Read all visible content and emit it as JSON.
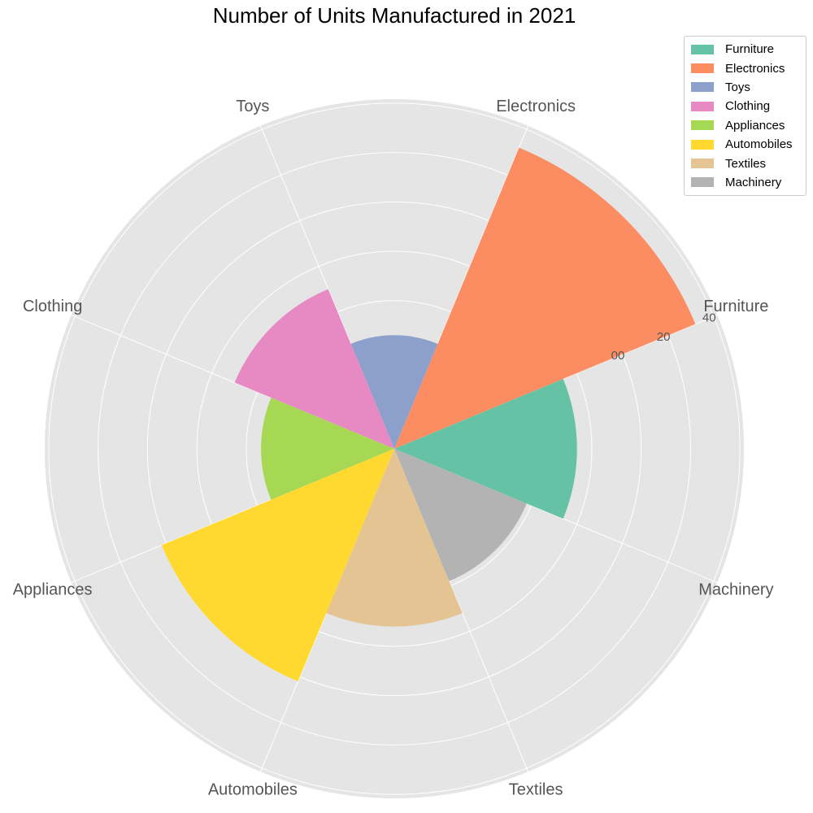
{
  "chart_data": {
    "type": "polar-bar",
    "title": "Number of Units Manufactured in 2021",
    "categories": [
      "Furniture",
      "Electronics",
      "Toys",
      "Clothing",
      "Appliances",
      "Automobiles",
      "Textiles",
      "Machinery"
    ],
    "values": [
      1850,
      3300,
      1150,
      1750,
      1350,
      2550,
      1800,
      1450
    ],
    "colors": [
      "#66c2a5",
      "#fc8d62",
      "#8da0cb",
      "#e78ac3",
      "#a6d854",
      "#ffd92f",
      "#e5c494",
      "#b3b3b3"
    ],
    "radial_ticks": [
      {
        "value": 500,
        "label": ""
      },
      {
        "value": 1000,
        "label": ""
      },
      {
        "value": 1500,
        "label": ""
      },
      {
        "value": 2000,
        "label": ""
      },
      {
        "value": 2500,
        "label": "00"
      },
      {
        "value": 3000,
        "label": "20"
      },
      {
        "value": 3500,
        "label": "40"
      }
    ],
    "rmax": 3540,
    "grid": true,
    "legend_position": "top-right",
    "legend": [
      "Furniture",
      "Electronics",
      "Toys",
      "Clothing",
      "Appliances",
      "Automobiles",
      "Textiles",
      "Machinery"
    ]
  }
}
